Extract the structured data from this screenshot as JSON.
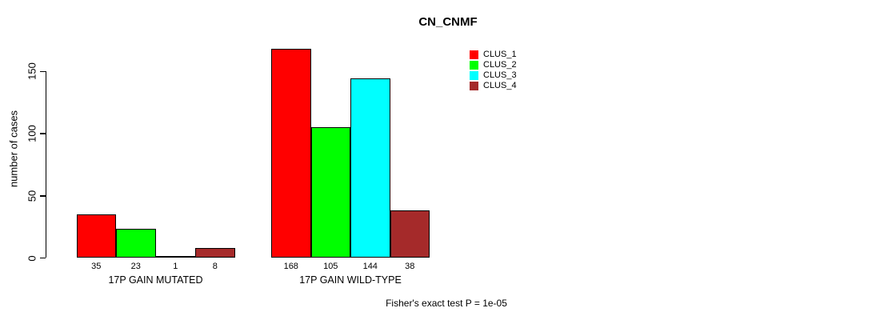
{
  "chart_data": {
    "type": "bar",
    "title": "CN_CNMF",
    "ylabel": "number of cases",
    "xlabel": "",
    "yticks": [
      0,
      50,
      100,
      150
    ],
    "ylim": [
      0,
      172
    ],
    "grid": false,
    "legend_position": "top-right",
    "bar_value_labels_shown": true,
    "series": [
      {
        "name": "CLUS_1",
        "color": "#ff0000"
      },
      {
        "name": "CLUS_2",
        "color": "#00ff00"
      },
      {
        "name": "CLUS_3",
        "color": "#00ffff"
      },
      {
        "name": "CLUS_4",
        "color": "#a52a2a"
      }
    ],
    "groups": [
      {
        "label": "17P GAIN MUTATED",
        "values": [
          35,
          23,
          1,
          8
        ]
      },
      {
        "label": "17P GAIN WILD-TYPE",
        "values": [
          168,
          105,
          144,
          38
        ]
      }
    ],
    "annotation": "Fisher's exact test P = 1e-05"
  }
}
